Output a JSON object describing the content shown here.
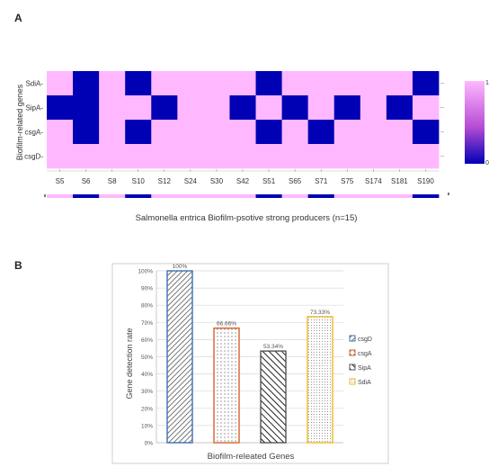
{
  "panelA": {
    "letter": "A",
    "ylabel": "Biofilm-related genes",
    "xlabel": "Salmonella entrica Biofilm-psotive strong producers (n=15)",
    "colorbar": {
      "max_label": "1",
      "min_label": "0",
      "high_color": "#ffb8ff",
      "low_color": "#0000b4"
    }
  },
  "panelB": {
    "letter": "B",
    "ylabel": "Gene detection rate",
    "xlabel": "Biofilm-releated Genes"
  },
  "chart_data": [
    {
      "type": "heatmap",
      "x": [
        "S5",
        "S6",
        "S8",
        "S10",
        "S12",
        "S24",
        "S30",
        "S42",
        "S51",
        "S65",
        "S71",
        "S75",
        "S174",
        "S181",
        "S190"
      ],
      "y": [
        "SdiA",
        "SipA",
        "csgA",
        "csgD"
      ],
      "values": [
        [
          1,
          0,
          1,
          0,
          1,
          1,
          1,
          1,
          0,
          1,
          1,
          1,
          1,
          1,
          0
        ],
        [
          0,
          0,
          1,
          1,
          0,
          1,
          1,
          0,
          1,
          0,
          1,
          0,
          1,
          0,
          1
        ],
        [
          1,
          0,
          1,
          0,
          1,
          1,
          1,
          1,
          0,
          1,
          0,
          1,
          1,
          1,
          0
        ],
        [
          1,
          1,
          1,
          1,
          1,
          1,
          1,
          1,
          1,
          1,
          1,
          1,
          1,
          1,
          1
        ]
      ],
      "ylabel": "Biofilm-related genes",
      "xlabel": "Salmonella entrica Biofilm-psotive strong producers (n=15)",
      "zlim": [
        0,
        1
      ],
      "colors": {
        "1": "#ffb8ff",
        "0": "#0000b4"
      }
    },
    {
      "type": "bar",
      "categories": [
        "csgD",
        "csgA",
        "SipA",
        "SdiA"
      ],
      "values": [
        100,
        66.66,
        53.34,
        73.33
      ],
      "value_labels": [
        "100%",
        "66.66%",
        "53.34%",
        "73.33%"
      ],
      "ylabel": "Gene detection rate",
      "xlabel": "Biofilm-releated Genes",
      "ylim": [
        0,
        100
      ],
      "yticks": [
        "0%",
        "10%",
        "20%",
        "30%",
        "40%",
        "50%",
        "60%",
        "70%",
        "80%",
        "90%",
        "100%"
      ],
      "grid": true,
      "legend": "right",
      "series_styles": [
        {
          "name": "csgD",
          "border": "#3d6fb0",
          "pattern": "diag-dense"
        },
        {
          "name": "csgA",
          "border": "#d9622b",
          "pattern": "dots"
        },
        {
          "name": "SipA",
          "border": "#555555",
          "pattern": "diag-wide"
        },
        {
          "name": "SdiA",
          "border": "#e8b926",
          "pattern": "dots-fine"
        }
      ]
    }
  ]
}
